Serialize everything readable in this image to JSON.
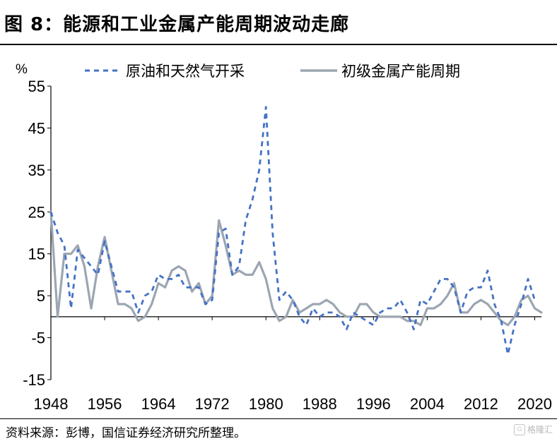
{
  "figure": {
    "title": "图 8：能源和工业金属产能周期波动走廊",
    "source": "资料来源：彭博，国信证券经济研究所整理。",
    "watermark": "格隆汇"
  },
  "chart_data": {
    "type": "line",
    "unit_label": "%",
    "ylim": [
      -15,
      55
    ],
    "yticks": [
      55,
      45,
      35,
      25,
      15,
      5,
      -5,
      -15
    ],
    "xlim": [
      1948,
      2021
    ],
    "xticks": [
      1948,
      1956,
      1964,
      1972,
      1980,
      1988,
      1996,
      2004,
      2012,
      2020
    ],
    "grid": false,
    "legend_position": "top",
    "series": [
      {
        "name": "原油和天然气开采",
        "color": "#4472C4",
        "style": "dashed",
        "points": [
          [
            1948,
            25
          ],
          [
            1949,
            20
          ],
          [
            1950,
            17
          ],
          [
            1951,
            2
          ],
          [
            1952,
            16
          ],
          [
            1953,
            14
          ],
          [
            1954,
            12
          ],
          [
            1955,
            10
          ],
          [
            1956,
            18
          ],
          [
            1957,
            12
          ],
          [
            1958,
            6
          ],
          [
            1959,
            6
          ],
          [
            1960,
            6
          ],
          [
            1961,
            1
          ],
          [
            1962,
            5
          ],
          [
            1963,
            6
          ],
          [
            1964,
            10
          ],
          [
            1965,
            9
          ],
          [
            1966,
            9
          ],
          [
            1967,
            10
          ],
          [
            1968,
            7
          ],
          [
            1969,
            7
          ],
          [
            1970,
            7
          ],
          [
            1971,
            3
          ],
          [
            1972,
            4
          ],
          [
            1973,
            20
          ],
          [
            1974,
            21
          ],
          [
            1975,
            10
          ],
          [
            1976,
            12
          ],
          [
            1977,
            23
          ],
          [
            1978,
            28
          ],
          [
            1979,
            35
          ],
          [
            1980,
            50
          ],
          [
            1981,
            20
          ],
          [
            1982,
            4
          ],
          [
            1983,
            6
          ],
          [
            1984,
            4
          ],
          [
            1985,
            0
          ],
          [
            1986,
            -2
          ],
          [
            1987,
            2
          ],
          [
            1988,
            0
          ],
          [
            1989,
            1
          ],
          [
            1990,
            1
          ],
          [
            1991,
            0
          ],
          [
            1992,
            -3
          ],
          [
            1993,
            1
          ],
          [
            1994,
            0
          ],
          [
            1995,
            -1
          ],
          [
            1996,
            -2
          ],
          [
            1997,
            1
          ],
          [
            1998,
            2
          ],
          [
            1999,
            2
          ],
          [
            2000,
            4
          ],
          [
            2001,
            1
          ],
          [
            2002,
            -3
          ],
          [
            2003,
            4
          ],
          [
            2004,
            3
          ],
          [
            2005,
            6
          ],
          [
            2006,
            9
          ],
          [
            2007,
            9
          ],
          [
            2008,
            7
          ],
          [
            2009,
            1
          ],
          [
            2010,
            6
          ],
          [
            2011,
            7
          ],
          [
            2012,
            7
          ],
          [
            2013,
            11
          ],
          [
            2014,
            3
          ],
          [
            2015,
            -1
          ],
          [
            2016,
            -9
          ],
          [
            2017,
            -2
          ],
          [
            2018,
            3
          ],
          [
            2019,
            9
          ],
          [
            2020,
            4
          ]
        ]
      },
      {
        "name": "初级金属产能周期",
        "color": "#9CA6B2",
        "style": "solid",
        "points": [
          [
            1948,
            25
          ],
          [
            1949,
            0
          ],
          [
            1950,
            15
          ],
          [
            1951,
            15
          ],
          [
            1952,
            17
          ],
          [
            1953,
            12
          ],
          [
            1954,
            2
          ],
          [
            1955,
            12
          ],
          [
            1956,
            19
          ],
          [
            1957,
            11
          ],
          [
            1958,
            3
          ],
          [
            1959,
            3
          ],
          [
            1960,
            2
          ],
          [
            1961,
            -1
          ],
          [
            1962,
            0
          ],
          [
            1963,
            3
          ],
          [
            1964,
            8
          ],
          [
            1965,
            7
          ],
          [
            1966,
            11
          ],
          [
            1967,
            12
          ],
          [
            1968,
            11
          ],
          [
            1969,
            6
          ],
          [
            1970,
            8
          ],
          [
            1971,
            3
          ],
          [
            1972,
            5
          ],
          [
            1973,
            23
          ],
          [
            1974,
            17
          ],
          [
            1975,
            10
          ],
          [
            1976,
            11
          ],
          [
            1977,
            10
          ],
          [
            1978,
            10
          ],
          [
            1979,
            13
          ],
          [
            1980,
            9
          ],
          [
            1981,
            2
          ],
          [
            1982,
            -1
          ],
          [
            1983,
            0
          ],
          [
            1984,
            4
          ],
          [
            1985,
            1
          ],
          [
            1986,
            2
          ],
          [
            1987,
            3
          ],
          [
            1988,
            3
          ],
          [
            1989,
            4
          ],
          [
            1990,
            3
          ],
          [
            1991,
            1
          ],
          [
            1992,
            0
          ],
          [
            1993,
            0
          ],
          [
            1994,
            3
          ],
          [
            1995,
            3
          ],
          [
            1996,
            1
          ],
          [
            1997,
            0
          ],
          [
            1998,
            0
          ],
          [
            1999,
            0
          ],
          [
            2000,
            0
          ],
          [
            2001,
            -1
          ],
          [
            2002,
            -1
          ],
          [
            2003,
            -2
          ],
          [
            2004,
            2
          ],
          [
            2005,
            2
          ],
          [
            2006,
            3
          ],
          [
            2007,
            5
          ],
          [
            2008,
            8
          ],
          [
            2009,
            1
          ],
          [
            2010,
            1
          ],
          [
            2011,
            3
          ],
          [
            2012,
            4
          ],
          [
            2013,
            3
          ],
          [
            2014,
            1
          ],
          [
            2015,
            -1
          ],
          [
            2016,
            -2
          ],
          [
            2017,
            0
          ],
          [
            2018,
            4
          ],
          [
            2019,
            5
          ],
          [
            2020,
            2
          ],
          [
            2021,
            1
          ]
        ]
      }
    ]
  }
}
